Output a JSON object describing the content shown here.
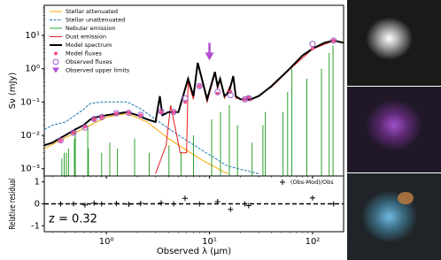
{
  "chart_data": [
    {
      "type": "sed",
      "ylabel": "Sν (mJy)",
      "xscale": "log",
      "yscale": "log",
      "xlim": [
        0.25,
        200
      ],
      "ylim": [
        0.0006,
        80
      ],
      "xticks": [
        1,
        10,
        100
      ],
      "yticks": [
        {
          "value": 0.001,
          "label": "10⁻³"
        },
        {
          "value": 0.01,
          "label": "10⁻²"
        },
        {
          "value": 0.1,
          "label": "10⁻¹"
        },
        {
          "value": 1,
          "label": "10⁰"
        },
        {
          "value": 10,
          "label": "10¹"
        }
      ],
      "legend_loc": "upper left",
      "series": [
        {
          "name": "Stellar attenuated",
          "color": "#ffa500",
          "style": "line",
          "x": [
            0.25,
            0.5,
            1,
            1.6,
            2.5,
            4,
            8,
            15
          ],
          "values": [
            0.004,
            0.012,
            0.035,
            0.045,
            0.025,
            0.008,
            0.002,
            0.0007
          ]
        },
        {
          "name": "Stellar unattenuated",
          "color": "#1f77b4",
          "style": "dashed",
          "x": [
            0.25,
            0.3,
            0.4,
            0.5,
            0.6,
            0.7,
            0.9,
            1.2,
            1.6,
            2.2,
            3,
            5,
            8,
            15,
            30
          ],
          "values": [
            0.015,
            0.02,
            0.025,
            0.04,
            0.06,
            0.09,
            0.1,
            0.1,
            0.1,
            0.06,
            0.03,
            0.01,
            0.004,
            0.0012,
            0.0007
          ]
        },
        {
          "name": "Nebular emission",
          "color": "#2ca02c",
          "style": "spikes",
          "x": [
            0.37,
            0.39,
            0.41,
            0.43,
            0.49,
            0.5,
            0.66,
            0.67,
            0.9,
            1.08,
            1.28,
            1.88,
            2.6,
            4.05,
            5.3,
            7,
            10.5,
            12.8,
            15.6,
            18.7,
            25.9,
            33,
            34.8,
            51.8,
            57.3,
            63,
            88,
            122,
            145,
            158
          ],
          "values": [
            0.002,
            0.003,
            0.003,
            0.004,
            0.008,
            0.015,
            0.02,
            0.004,
            0.003,
            0.006,
            0.004,
            0.008,
            0.003,
            0.005,
            0.003,
            0.01,
            0.03,
            0.05,
            0.08,
            0.02,
            0.006,
            0.02,
            0.05,
            0.05,
            0.2,
            1,
            0.5,
            1,
            3,
            5
          ]
        },
        {
          "name": "Dust emission",
          "color": "#e31a1c",
          "style": "line",
          "x": [
            3,
            3.8,
            4.2,
            4.6,
            5.2,
            6,
            6.2,
            7,
            7.7,
            8.6,
            9.5,
            11.3,
            12,
            12.7,
            14,
            17,
            18,
            25,
            40,
            60,
            100,
            160,
            200
          ],
          "values": [
            0.0007,
            0.005,
            0.08,
            0.02,
            0.003,
            0.003,
            0.4,
            0.12,
            1.4,
            0.35,
            0.1,
            0.7,
            0.25,
            0.45,
            0.13,
            0.5,
            0.13,
            0.11,
            0.28,
            0.95,
            3.9,
            6.9,
            6
          ]
        },
        {
          "name": "Model spectrum",
          "color": "#000000",
          "style": "thick",
          "x": [
            0.25,
            0.3,
            0.35,
            0.4,
            0.5,
            0.6,
            0.7,
            0.8,
            1,
            1.3,
            1.6,
            2,
            2.5,
            3,
            3.3,
            3.5,
            4,
            5,
            6.2,
            7,
            7.7,
            8.6,
            9.5,
            11.3,
            12,
            12.7,
            14,
            15.5,
            17,
            18,
            20,
            25,
            30,
            40,
            60,
            80,
            100,
            130,
            160,
            200
          ],
          "values": [
            0.005,
            0.006,
            0.008,
            0.01,
            0.015,
            0.02,
            0.03,
            0.035,
            0.04,
            0.045,
            0.05,
            0.04,
            0.03,
            0.025,
            0.15,
            0.04,
            0.05,
            0.05,
            0.5,
            0.15,
            1.5,
            0.4,
            0.12,
            0.8,
            0.3,
            0.5,
            0.15,
            0.2,
            0.6,
            0.15,
            0.12,
            0.12,
            0.15,
            0.3,
            1,
            2.5,
            4,
            6,
            7,
            6
          ]
        },
        {
          "name": "Model fluxes",
          "color": "#f0508c",
          "style": "dots",
          "x": [
            0.36,
            0.48,
            0.62,
            0.76,
            0.9,
            1.25,
            1.65,
            2.15,
            3.4,
            4.5,
            5.8,
            8,
            12,
            16,
            22,
            24,
            100,
            160
          ],
          "values": [
            0.007,
            0.012,
            0.018,
            0.03,
            0.035,
            0.045,
            0.048,
            0.04,
            0.05,
            0.05,
            0.1,
            0.3,
            0.18,
            0.2,
            0.12,
            0.14,
            4,
            7
          ]
        },
        {
          "name": "Observed fluxes",
          "color": "#9b59d0",
          "style": "circles",
          "x": [
            0.36,
            0.48,
            0.62,
            0.76,
            0.9,
            1.25,
            1.65,
            2.15,
            3.4,
            4.5,
            5.8,
            8,
            12,
            16,
            22,
            24,
            100,
            160
          ],
          "values": [
            0.007,
            0.012,
            0.017,
            0.031,
            0.035,
            0.046,
            0.047,
            0.041,
            0.052,
            0.05,
            0.13,
            0.3,
            0.2,
            0.16,
            0.12,
            0.13,
            5.5,
            7
          ]
        },
        {
          "name": "Observed upper limits",
          "color": "#b44fd0",
          "style": "arrows",
          "x": [
            10
          ],
          "values": [
            2
          ]
        }
      ]
    },
    {
      "type": "residual",
      "ylabel": "Relative residual",
      "xlabel": "Observed λ (μm)",
      "annotation": "z = 0.32",
      "xscale": "log",
      "xlim": [
        0.25,
        200
      ],
      "ylim": [
        -1.27,
        1.27
      ],
      "xticks": [
        {
          "value": 1,
          "label": "10⁰"
        },
        {
          "value": 10,
          "label": "10¹"
        },
        {
          "value": 100,
          "label": "10²"
        }
      ],
      "yticks": [
        -1,
        0,
        1
      ],
      "legend_loc": "upper right",
      "series": [
        {
          "name": "(Obs-Mod)/Obs",
          "color": "#000000",
          "style": "crosses",
          "x": [
            0.36,
            0.48,
            0.62,
            0.76,
            0.9,
            1.25,
            1.65,
            2.15,
            3.4,
            4.5,
            5.8,
            8,
            12,
            16,
            22,
            24,
            100,
            160
          ],
          "values": [
            0,
            0,
            -0.05,
            0.03,
            0,
            0.02,
            -0.02,
            0.02,
            0.04,
            0,
            0.25,
            0,
            0.1,
            -0.25,
            0,
            -0.08,
            0.27,
            0
          ]
        }
      ]
    }
  ]
}
